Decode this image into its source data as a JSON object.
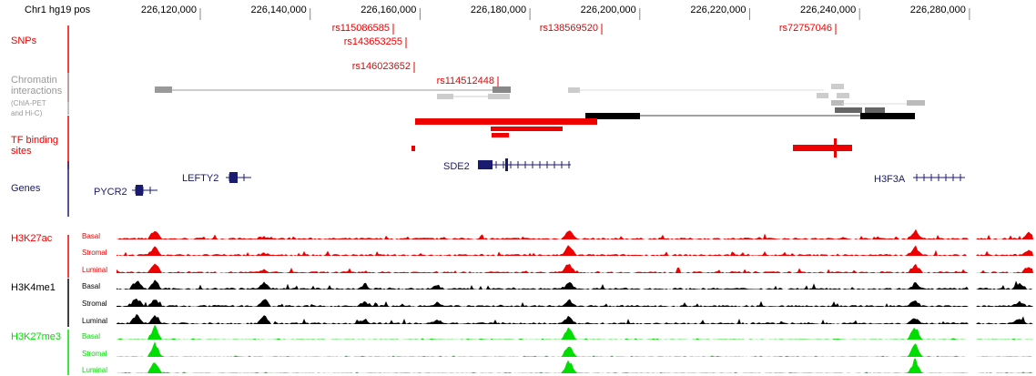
{
  "header": {
    "label": "Chr1 hg19 pos",
    "ticks": [
      "226,120,000",
      "226,140,000",
      "226,160,000",
      "226,180,000",
      "226,200,000",
      "226,220,000",
      "226,240,000",
      "226,280,000"
    ]
  },
  "tracks": {
    "snps": "SNPs",
    "chromatin": "Chromatin interactions",
    "chromatin_sub": "(ChIA-PET and Hi-C)",
    "tf": "TF binding sites",
    "genes": "Genes"
  },
  "snps": [
    "rs115086585",
    "rs143653255",
    "rs146023652",
    "rs114512448",
    "rs138569520",
    "rs72757046"
  ],
  "genes": [
    "PYCR2",
    "LEFTY2",
    "SDE2",
    "H3F3A"
  ],
  "histone": [
    {
      "label": "H3K27ac",
      "samples": [
        "Basal",
        "Stromal",
        "Luminal"
      ]
    },
    {
      "label": "H3K4me1",
      "samples": [
        "Basal",
        "Stromal",
        "Luminal"
      ]
    },
    {
      "label": "H3K27me3",
      "samples": [
        "Basal",
        "Stromal",
        "Luminal"
      ]
    }
  ]
}
